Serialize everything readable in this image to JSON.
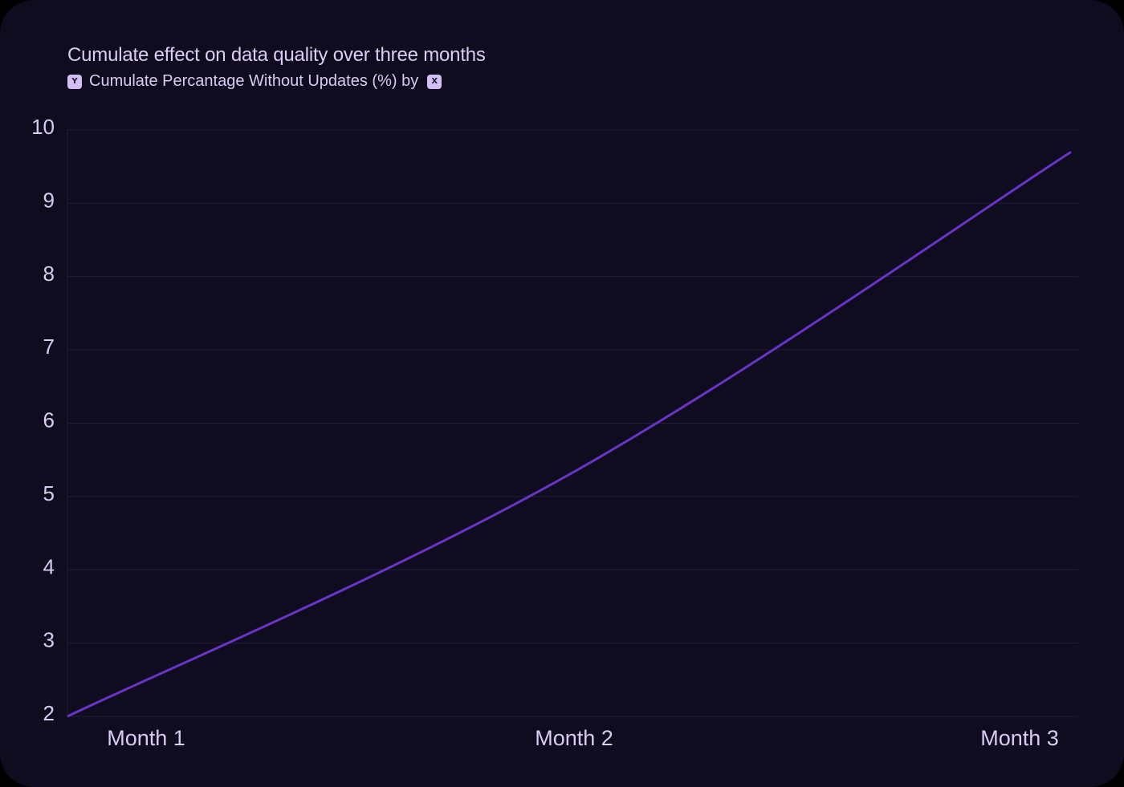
{
  "card": {
    "title": "Cumulate effect on data quality over three months",
    "subtitle_y_chip": "Y",
    "subtitle_text": "Cumulate Percantage Without Updates (%) by",
    "subtitle_x_chip": "X"
  },
  "colors": {
    "background": "#0F0C1F",
    "line": "#6A33C8",
    "grid": "#231D3A",
    "text": "#D9CBF2",
    "chip": "#D3BFF3"
  },
  "chart_data": {
    "type": "line",
    "title": "Cumulate effect on data quality over three months",
    "subtitle": "Y Cumulate Percantage Without Updates (%) by X",
    "xlabel": "",
    "ylabel": "Cumulate Percantage Without Updates (%)",
    "categories": [
      "Month 1",
      "Month 2",
      "Month 3"
    ],
    "series": [
      {
        "name": "Cumulate Percantage Without Updates (%)",
        "values": [
          2.0,
          5.3,
          9.7
        ]
      }
    ],
    "ylim": [
      2,
      10
    ],
    "yticks": [
      2,
      3,
      4,
      5,
      6,
      7,
      8,
      9,
      10
    ],
    "grid": true,
    "legend": "none",
    "curve": "smooth"
  }
}
